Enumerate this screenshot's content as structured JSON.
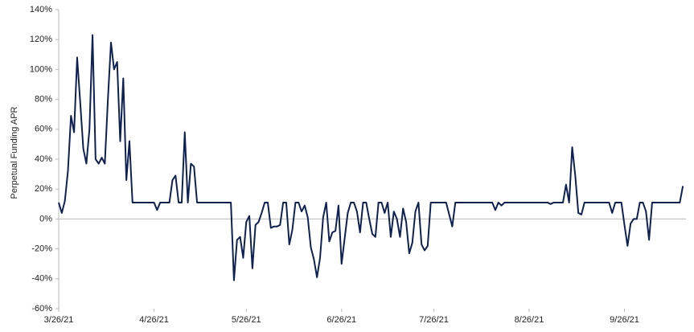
{
  "chart_data": {
    "type": "line",
    "y_label": "Perpetual Funding APR",
    "x": [
      "2021-03-26",
      "2021-03-27",
      "2021-03-28",
      "2021-03-29",
      "2021-03-30",
      "2021-03-31",
      "2021-04-01",
      "2021-04-02",
      "2021-04-03",
      "2021-04-04",
      "2021-04-05",
      "2021-04-06",
      "2021-04-07",
      "2021-04-08",
      "2021-04-09",
      "2021-04-10",
      "2021-04-11",
      "2021-04-12",
      "2021-04-13",
      "2021-04-14",
      "2021-04-15",
      "2021-04-16",
      "2021-04-17",
      "2021-04-18",
      "2021-04-19",
      "2021-04-26",
      "2021-04-27",
      "2021-04-28",
      "2021-05-01",
      "2021-05-02",
      "2021-05-03",
      "2021-05-04",
      "2021-05-05",
      "2021-05-06",
      "2021-05-07",
      "2021-05-08",
      "2021-05-09",
      "2021-05-10",
      "2021-05-21",
      "2021-05-22",
      "2021-05-23",
      "2021-05-24",
      "2021-05-25",
      "2021-05-26",
      "2021-05-27",
      "2021-05-28",
      "2021-05-29",
      "2021-05-30",
      "2021-05-31",
      "2021-06-01",
      "2021-06-02",
      "2021-06-03",
      "2021-06-04",
      "2021-06-05",
      "2021-06-06",
      "2021-06-07",
      "2021-06-08",
      "2021-06-09",
      "2021-06-10",
      "2021-06-11",
      "2021-06-12",
      "2021-06-13",
      "2021-06-14",
      "2021-06-15",
      "2021-06-16",
      "2021-06-17",
      "2021-06-18",
      "2021-06-19",
      "2021-06-20",
      "2021-06-21",
      "2021-06-22",
      "2021-06-23",
      "2021-06-24",
      "2021-06-25",
      "2021-06-26",
      "2021-06-27",
      "2021-06-28",
      "2021-06-29",
      "2021-06-30",
      "2021-07-01",
      "2021-07-02",
      "2021-07-03",
      "2021-07-04",
      "2021-07-05",
      "2021-07-06",
      "2021-07-07",
      "2021-07-08",
      "2021-07-09",
      "2021-07-10",
      "2021-07-11",
      "2021-07-12",
      "2021-07-13",
      "2021-07-14",
      "2021-07-15",
      "2021-07-16",
      "2021-07-17",
      "2021-07-18",
      "2021-07-19",
      "2021-07-20",
      "2021-07-21",
      "2021-07-22",
      "2021-07-23",
      "2021-07-24",
      "2021-07-25",
      "2021-07-30",
      "2021-07-31",
      "2021-08-01",
      "2021-08-02",
      "2021-08-14",
      "2021-08-15",
      "2021-08-16",
      "2021-08-17",
      "2021-08-18",
      "2021-09-01",
      "2021-09-02",
      "2021-09-03",
      "2021-09-06",
      "2021-09-07",
      "2021-09-08",
      "2021-09-09",
      "2021-09-10",
      "2021-09-11",
      "2021-09-12",
      "2021-09-13",
      "2021-09-21",
      "2021-09-22",
      "2021-09-23",
      "2021-09-25",
      "2021-09-26",
      "2021-09-27",
      "2021-09-28",
      "2021-09-29",
      "2021-09-30",
      "2021-10-01",
      "2021-10-02",
      "2021-10-03",
      "2021-10-04",
      "2021-10-05",
      "2021-10-14",
      "2021-10-15"
    ],
    "series": [
      {
        "color": "#0f2150",
        "values": [
          11,
          4,
          12,
          32,
          69,
          58,
          108,
          78,
          47,
          37,
          60,
          123,
          40,
          37,
          41,
          37,
          80,
          118,
          100,
          105,
          52,
          94,
          26,
          52,
          11,
          11,
          6,
          11,
          11,
          26,
          29,
          11,
          11,
          58,
          11,
          37,
          35,
          11,
          11,
          -41,
          -14,
          -12,
          -26,
          -2,
          2,
          -33,
          -4,
          -2,
          4,
          11,
          11,
          -6,
          -5,
          -5,
          -4,
          11,
          11,
          -17,
          -7,
          11,
          11,
          5,
          9,
          1,
          -19,
          -27,
          -39,
          -26,
          1,
          11,
          -15,
          -9,
          -8,
          9,
          -30,
          -13,
          4,
          11,
          11,
          5,
          -9,
          11,
          11,
          0,
          -10,
          -12,
          11,
          11,
          4,
          11,
          -12,
          5,
          0,
          -12,
          7,
          -2,
          -23,
          -16,
          5,
          11,
          -17,
          -21,
          -18,
          11,
          11,
          3,
          -5,
          11,
          11,
          6,
          11,
          9,
          11,
          11,
          10,
          11,
          11,
          23,
          11,
          48,
          29,
          4,
          3,
          11,
          11,
          4,
          11,
          11,
          -4,
          -18,
          -3,
          0,
          0,
          11,
          11,
          5,
          -14,
          11,
          11,
          22
        ]
      }
    ],
    "xlim": [
      "2021-03-26",
      "2021-10-16"
    ],
    "xticks": [
      {
        "value": "2021-03-26",
        "label": "3/26/21"
      },
      {
        "value": "2021-04-26",
        "label": "4/26/21"
      },
      {
        "value": "2021-05-26",
        "label": "5/26/21"
      },
      {
        "value": "2021-06-26",
        "label": "6/26/21"
      },
      {
        "value": "2021-07-26",
        "label": "7/26/21"
      },
      {
        "value": "2021-08-26",
        "label": "8/26/21"
      },
      {
        "value": "2021-09-26",
        "label": "9/26/21"
      }
    ],
    "ylim": [
      -60,
      140
    ],
    "yticks": [
      {
        "value": -60,
        "label": "-60%"
      },
      {
        "value": -40,
        "label": "-40%"
      },
      {
        "value": -20,
        "label": "-20%"
      },
      {
        "value": 0,
        "label": "0%"
      },
      {
        "value": 20,
        "label": "20%"
      },
      {
        "value": 40,
        "label": "40%"
      },
      {
        "value": 60,
        "label": "60%"
      },
      {
        "value": 80,
        "label": "80%"
      },
      {
        "value": 100,
        "label": "100%"
      },
      {
        "value": 120,
        "label": "120%"
      },
      {
        "value": 140,
        "label": "140%"
      }
    ],
    "grid": false
  }
}
